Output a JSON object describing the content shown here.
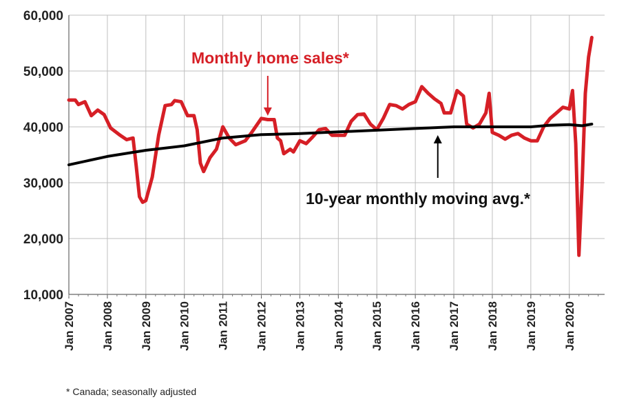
{
  "chart_data": {
    "type": "line",
    "ylim": [
      10000,
      60000
    ],
    "yticks": [
      10000,
      20000,
      30000,
      40000,
      50000,
      60000
    ],
    "ytick_labels": [
      "10,000",
      "20,000",
      "30,000",
      "40,000",
      "50,000",
      "60,000"
    ],
    "xlim": [
      "2007-01",
      "2020-12"
    ],
    "xtick_labels": [
      "Jan 2007",
      "Jan 2008",
      "Jan 2009",
      "Jan 2010",
      "Jan 2011",
      "Jan 2012",
      "Jan 2013",
      "Jan 2014",
      "Jan 2015",
      "Jan 2016",
      "Jan 2017",
      "Jan 2018",
      "Jan 2019",
      "Jan 2020"
    ],
    "grid": true,
    "series": [
      {
        "name": "Monthly home sales*",
        "color": "#d61f26",
        "points": [
          [
            "2007-01",
            44800
          ],
          [
            "2007-03",
            44800
          ],
          [
            "2007-04",
            44000
          ],
          [
            "2007-06",
            44500
          ],
          [
            "2007-08",
            42000
          ],
          [
            "2007-10",
            43000
          ],
          [
            "2007-12",
            42200
          ],
          [
            "2008-02",
            39800
          ],
          [
            "2008-05",
            38500
          ],
          [
            "2008-07",
            37700
          ],
          [
            "2008-09",
            38000
          ],
          [
            "2008-10",
            33000
          ],
          [
            "2008-11",
            27500
          ],
          [
            "2008-12",
            26500
          ],
          [
            "2009-01",
            26800
          ],
          [
            "2009-03",
            31000
          ],
          [
            "2009-05",
            38500
          ],
          [
            "2009-07",
            43800
          ],
          [
            "2009-09",
            44000
          ],
          [
            "2009-10",
            44700
          ],
          [
            "2009-12",
            44500
          ],
          [
            "2010-02",
            42000
          ],
          [
            "2010-04",
            42000
          ],
          [
            "2010-05",
            39500
          ],
          [
            "2010-06",
            33500
          ],
          [
            "2010-07",
            32000
          ],
          [
            "2010-09",
            34500
          ],
          [
            "2010-11",
            36000
          ],
          [
            "2011-01",
            40000
          ],
          [
            "2011-03",
            38000
          ],
          [
            "2011-05",
            36800
          ],
          [
            "2011-08",
            37500
          ],
          [
            "2011-10",
            39000
          ],
          [
            "2012-01",
            41500
          ],
          [
            "2012-03",
            41300
          ],
          [
            "2012-05",
            41300
          ],
          [
            "2012-06",
            38000
          ],
          [
            "2012-07",
            37500
          ],
          [
            "2012-08",
            35200
          ],
          [
            "2012-10",
            36000
          ],
          [
            "2012-11",
            35500
          ],
          [
            "2013-01",
            37500
          ],
          [
            "2013-03",
            37000
          ],
          [
            "2013-05",
            38200
          ],
          [
            "2013-07",
            39500
          ],
          [
            "2013-09",
            39700
          ],
          [
            "2013-11",
            38500
          ],
          [
            "2014-01",
            38500
          ],
          [
            "2014-03",
            38500
          ],
          [
            "2014-05",
            41000
          ],
          [
            "2014-07",
            42200
          ],
          [
            "2014-09",
            42300
          ],
          [
            "2014-11",
            40500
          ],
          [
            "2015-01",
            39500
          ],
          [
            "2015-03",
            41500
          ],
          [
            "2015-05",
            44000
          ],
          [
            "2015-07",
            43800
          ],
          [
            "2015-09",
            43200
          ],
          [
            "2015-11",
            44000
          ],
          [
            "2016-01",
            44500
          ],
          [
            "2016-03",
            47200
          ],
          [
            "2016-05",
            46000
          ],
          [
            "2016-07",
            45000
          ],
          [
            "2016-09",
            44200
          ],
          [
            "2016-10",
            42500
          ],
          [
            "2016-12",
            42500
          ],
          [
            "2017-02",
            46500
          ],
          [
            "2017-04",
            45500
          ],
          [
            "2017-05",
            40500
          ],
          [
            "2017-07",
            39800
          ],
          [
            "2017-09",
            40500
          ],
          [
            "2017-11",
            42500
          ],
          [
            "2017-12",
            46000
          ],
          [
            "2018-01",
            39000
          ],
          [
            "2018-03",
            38500
          ],
          [
            "2018-05",
            37800
          ],
          [
            "2018-07",
            38500
          ],
          [
            "2018-09",
            38800
          ],
          [
            "2018-11",
            38000
          ],
          [
            "2019-01",
            37500
          ],
          [
            "2019-03",
            37500
          ],
          [
            "2019-05",
            40000
          ],
          [
            "2019-07",
            41500
          ],
          [
            "2019-09",
            42500
          ],
          [
            "2019-11",
            43500
          ],
          [
            "2020-01",
            43200
          ],
          [
            "2020-02",
            46500
          ],
          [
            "2020-03",
            37000
          ],
          [
            "2020-04",
            17000
          ],
          [
            "2020-05",
            30000
          ],
          [
            "2020-06",
            46000
          ],
          [
            "2020-07",
            52500
          ],
          [
            "2020-08",
            56000
          ]
        ]
      },
      {
        "name": "10-year monthly moving avg.*",
        "color": "#000000",
        "points": [
          [
            "2007-01",
            33200
          ],
          [
            "2008-01",
            34700
          ],
          [
            "2009-01",
            35800
          ],
          [
            "2010-01",
            36600
          ],
          [
            "2011-01",
            38000
          ],
          [
            "2012-01",
            38600
          ],
          [
            "2013-01",
            38800
          ],
          [
            "2014-01",
            39100
          ],
          [
            "2015-01",
            39400
          ],
          [
            "2016-01",
            39700
          ],
          [
            "2017-01",
            40000
          ],
          [
            "2018-01",
            40000
          ],
          [
            "2019-01",
            40000
          ],
          [
            "2019-07",
            40300
          ],
          [
            "2020-01",
            40400
          ],
          [
            "2020-05",
            40200
          ],
          [
            "2020-08",
            40500
          ]
        ]
      }
    ],
    "annotations": [
      {
        "text": "Monthly home sales*",
        "color": "#d61f26",
        "arrow_to": [
          "2012-03",
          41500
        ]
      },
      {
        "text": "10-year monthly moving avg.*",
        "color": "#000000",
        "arrow_to": [
          "2016-08",
          40000
        ]
      }
    ]
  },
  "footnote": "* Canada; seasonally adjusted"
}
